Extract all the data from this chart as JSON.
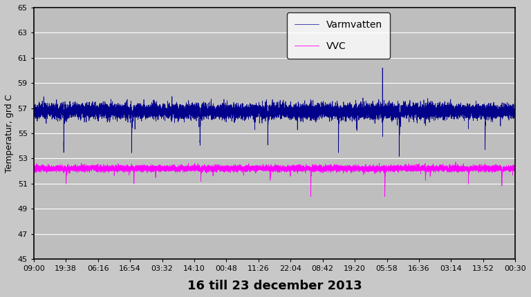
{
  "title": "16 till 23 december 2013",
  "ylabel": "Temperatur, grd C",
  "ylim": [
    45,
    65
  ],
  "yticks": [
    45,
    47,
    49,
    51,
    53,
    55,
    57,
    59,
    61,
    63,
    65
  ],
  "xtick_labels": [
    "09:00",
    "19:38",
    "06:16",
    "16:54",
    "03:32",
    "14:10",
    "00:48",
    "11:26",
    "22:04",
    "08:42",
    "19:20",
    "05:58",
    "16:36",
    "03:14",
    "13:52",
    "00:30"
  ],
  "legend_labels": [
    "Varmvatten",
    "VVC"
  ],
  "varmvatten_color": "#00008B",
  "vvc_color": "#FF00FF",
  "fig_bg_color": "#C8C8C8",
  "plot_bg_color": "#BEBEBE",
  "n_points": 10080,
  "varmvatten_base": 56.75,
  "varmvatten_noise": 0.3,
  "vvc_base": 52.2,
  "vvc_noise": 0.12,
  "title_fontsize": 13,
  "label_fontsize": 9,
  "tick_fontsize": 8
}
